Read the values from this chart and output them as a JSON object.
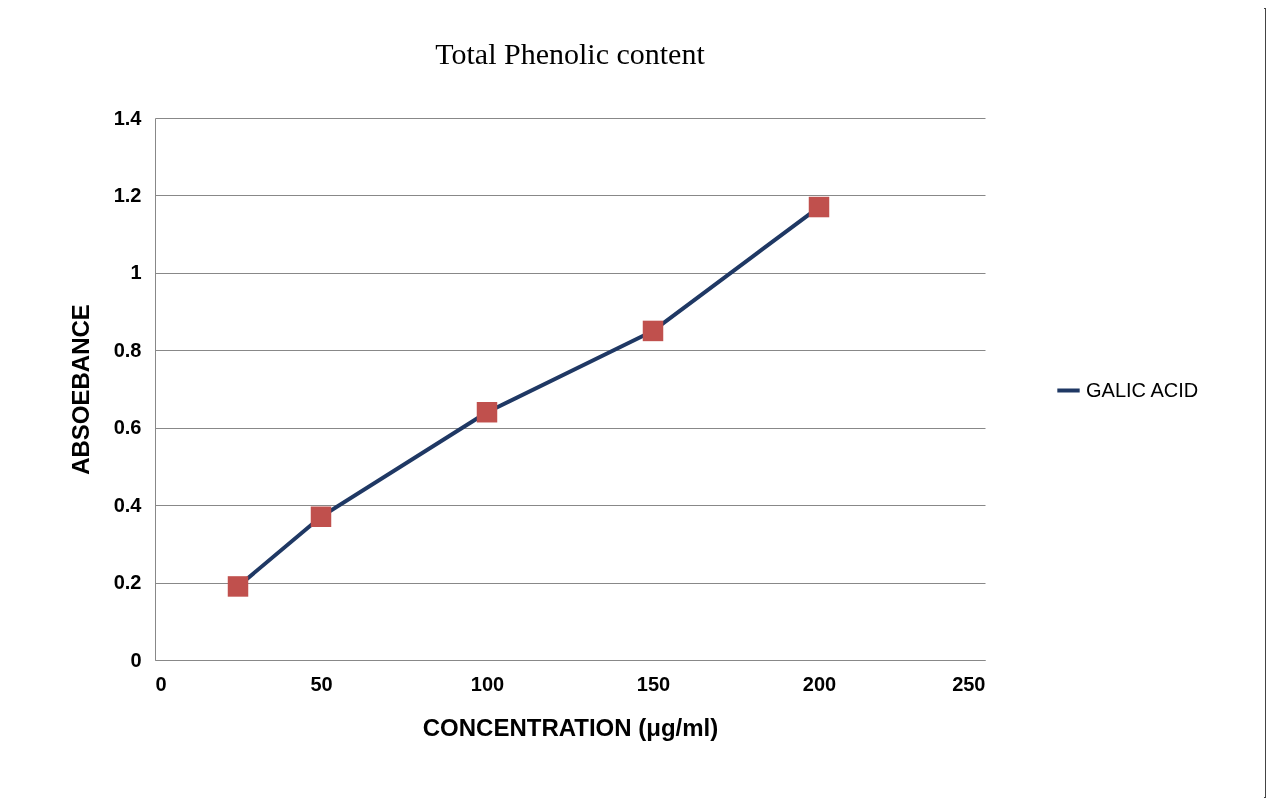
{
  "chart_data": {
    "type": "line",
    "title": "Total Phenolic content",
    "xlabel": "CONCENTRATION  (μg/ml)",
    "ylabel": "ABSOEBANCE",
    "x": [
      25,
      50,
      100,
      150,
      200
    ],
    "series": [
      {
        "name": "GALIC ACID",
        "color": "#1f3864",
        "values": [
          0.19,
          0.37,
          0.64,
          0.85,
          1.17
        ]
      }
    ],
    "xlim": [
      0,
      250
    ],
    "xticks": [
      0,
      50,
      100,
      150,
      200,
      250
    ],
    "ylim": [
      0,
      1.4
    ],
    "yticks": [
      0,
      0.2,
      0.4,
      0.6,
      0.8,
      1,
      1.2,
      1.4
    ],
    "grid": "y",
    "legend": "right",
    "marker": "square",
    "line_style": "solid"
  }
}
